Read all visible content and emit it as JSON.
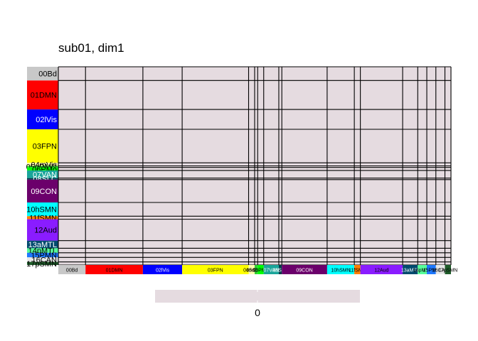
{
  "chart_data": {
    "type": "heatmap",
    "title": "sub01, dim1",
    "xlabel": "",
    "ylabel": "",
    "cell_color": "#e5dbe0",
    "grid_color": "#000000",
    "networks": [
      {
        "label": "00Bd",
        "size": 9,
        "color": "#c8c8c8",
        "text_color": "#000000"
      },
      {
        "label": "01DMN",
        "size": 19,
        "color": "#ff0000",
        "text_color": "#000000"
      },
      {
        "label": "02lVis",
        "size": 13,
        "color": "#0000ff",
        "text_color": "#ffffff"
      },
      {
        "label": "03FPN",
        "size": 22,
        "color": "#ffff00",
        "text_color": "#000000"
      },
      {
        "label": "04mVis",
        "size": 2,
        "color": "#ffffb0",
        "text_color": "#000000"
      },
      {
        "label": "05dDMN",
        "size": 1,
        "color": "#32cd32",
        "text_color": "#000000"
      },
      {
        "label": "06PMo",
        "size": 2,
        "color": "#00ff00",
        "text_color": "#000000"
      },
      {
        "label": "07VAN",
        "size": 5,
        "color": "#1aa59a",
        "text_color": "#ffffff"
      },
      {
        "label": "08SLC",
        "size": 1,
        "color": "#003a4a",
        "text_color": "#ffffff"
      },
      {
        "label": "09CON",
        "size": 15,
        "color": "#6b006b",
        "text_color": "#ffffff"
      },
      {
        "label": "10hSMN",
        "size": 9,
        "color": "#00ffff",
        "text_color": "#000000"
      },
      {
        "label": "11fSMN",
        "size": 2,
        "color": "#ff7f00",
        "text_color": "#000000"
      },
      {
        "label": "12Aud",
        "size": 14,
        "color": "#8a1cff",
        "text_color": "#000000"
      },
      {
        "label": "13aMTL",
        "size": 5,
        "color": "#004a6e",
        "text_color": "#ffffff"
      },
      {
        "label": "14pMTL",
        "size": 3,
        "color": "#57ff9a",
        "text_color": "#000000"
      },
      {
        "label": "15PMN",
        "size": 3,
        "color": "#1e78ff",
        "text_color": "#000000"
      },
      {
        "label": "16CAN",
        "size": 3,
        "color": "#e8e8e8",
        "text_color": "#000000"
      },
      {
        "label": "17pSMN",
        "size": 2,
        "color": "#1f5c2a",
        "text_color": "#000000"
      }
    ],
    "color_scale": {
      "colors": [
        "#e5dbe0",
        "#e5dbe0"
      ],
      "tick_labels": [
        "0"
      ]
    }
  }
}
